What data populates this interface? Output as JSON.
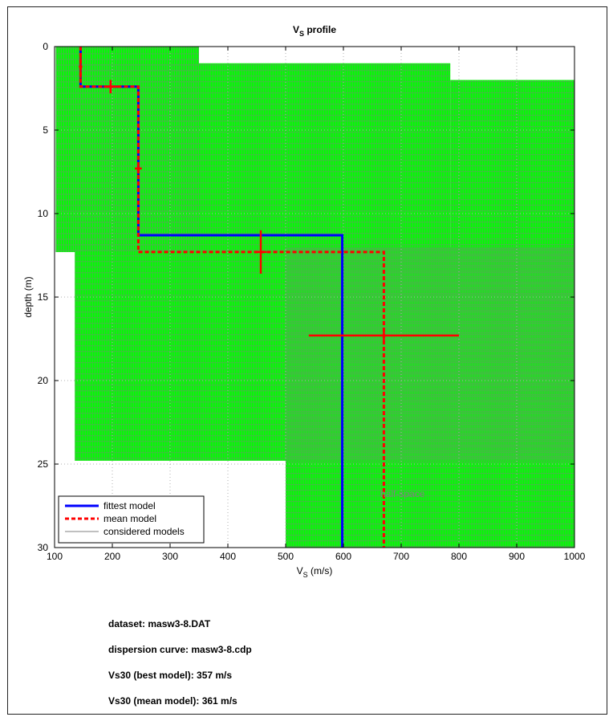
{
  "chart_data": {
    "type": "line",
    "title": "V",
    "title_sub": "S",
    "title_rest": " profile",
    "xlabel": "V",
    "xlabel_sub": "S",
    "xlabel_rest": " (m/s)",
    "ylabel": "depth (m)",
    "xlim": [
      100,
      1000
    ],
    "ylim": [
      0,
      30
    ],
    "y_reversed": true,
    "xticks": [
      100,
      200,
      300,
      400,
      500,
      600,
      700,
      800,
      900,
      1000
    ],
    "yticks": [
      0,
      5,
      10,
      15,
      20,
      25,
      30
    ],
    "grid": true,
    "legend_position": "bottom-left",
    "legend": [
      "fittest model",
      "mean model",
      "considered models"
    ],
    "colors": {
      "fittest": "#0000ff",
      "mean": "#ff0000",
      "considered": "#808080",
      "coverage": "#00ff00"
    },
    "series": [
      {
        "name": "fittest model",
        "style": "solid",
        "points": [
          [
            145,
            0
          ],
          [
            145,
            2.4
          ],
          [
            245,
            2.4
          ],
          [
            245,
            11.3
          ],
          [
            598,
            11.3
          ],
          [
            598,
            30
          ]
        ]
      },
      {
        "name": "mean model",
        "style": "dashed",
        "points": [
          [
            145,
            0
          ],
          [
            145,
            2.4
          ],
          [
            245,
            2.4
          ],
          [
            245,
            12.3
          ],
          [
            670,
            12.3
          ],
          [
            670,
            30
          ]
        ]
      }
    ],
    "error_bars": [
      {
        "x": 145,
        "y": 1.2,
        "x_err": 3,
        "y_err": 0.7
      },
      {
        "x": 197,
        "y": 2.4,
        "x_err": 12,
        "y_err": 0.4
      },
      {
        "x": 245,
        "y": 7.3,
        "x_err": 6,
        "y_err": 0.3
      },
      {
        "x": 457,
        "y": 12.3,
        "x_err": 10,
        "y_err": 1.3
      },
      {
        "x": 670,
        "y": 17.3,
        "x_err": 130,
        "y_err": 0.3
      }
    ],
    "coverage_regions": [
      {
        "x": [
          102,
          135
        ],
        "y": [
          0,
          12.3
        ]
      },
      {
        "x": [
          102,
          350
        ],
        "y": [
          0,
          12.3
        ]
      },
      {
        "x": [
          135,
          785
        ],
        "y": [
          1.0,
          24.8
        ]
      },
      {
        "x": [
          785,
          1000
        ],
        "y": [
          2.0,
          24.8
        ]
      },
      {
        "x": [
          500,
          1000
        ],
        "y": [
          12.0,
          30
        ]
      }
    ],
    "annotation": "half-space"
  },
  "info": {
    "dataset": "dataset: masw3-8.DAT",
    "dispersion": "dispersion curve: masw3-8.cdp",
    "vs30_best": "Vs30 (best model): 357 m/s",
    "vs30_mean": "Vs30 (mean model): 361 m/s"
  }
}
